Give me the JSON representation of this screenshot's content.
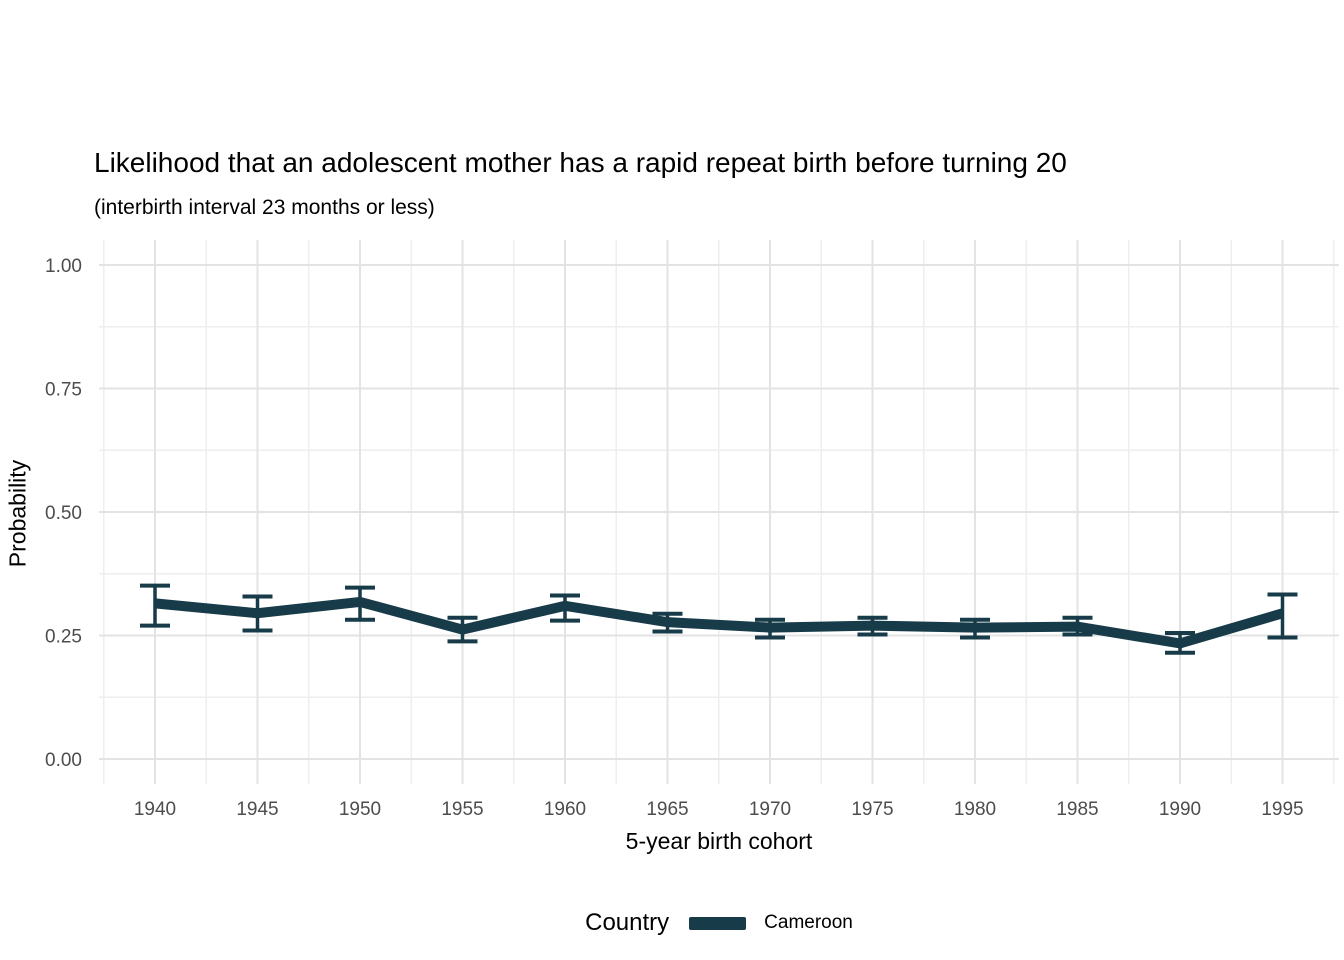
{
  "chart_data": {
    "type": "line",
    "title": "Likelihood that an adolescent mother has a rapid repeat birth before turning 20",
    "subtitle": "(interbirth interval 23 months or less)",
    "xlabel": "5-year birth cohort",
    "ylabel": "Probability",
    "x": [
      1940,
      1945,
      1950,
      1955,
      1960,
      1965,
      1970,
      1975,
      1980,
      1985,
      1990,
      1995
    ],
    "x_tick_labels": [
      "1940",
      "1945",
      "1950",
      "1955",
      "1960",
      "1965",
      "1970",
      "1975",
      "1980",
      "1985",
      "1990",
      "1995"
    ],
    "y_ticks": [
      0,
      0.25,
      0.5,
      0.75,
      1
    ],
    "y_tick_labels": [
      "0.00",
      "0.25",
      "0.50",
      "0.75",
      "1.00"
    ],
    "y_minor_ticks": [
      0.125,
      0.375,
      0.625,
      0.875
    ],
    "ylim": [
      0,
      1
    ],
    "grid": "major-and-minor",
    "series": [
      {
        "name": "Cameroon",
        "color": "#173b48",
        "values": [
          0.315,
          0.295,
          0.318,
          0.262,
          0.31,
          0.277,
          0.266,
          0.27,
          0.266,
          0.268,
          0.234,
          0.295
        ],
        "lower": [
          0.27,
          0.26,
          0.282,
          0.238,
          0.28,
          0.258,
          0.246,
          0.252,
          0.246,
          0.252,
          0.215,
          0.246
        ],
        "upper": [
          0.351,
          0.329,
          0.347,
          0.286,
          0.331,
          0.294,
          0.282,
          0.286,
          0.282,
          0.286,
          0.255,
          0.333
        ]
      }
    ],
    "legend": {
      "title": "Country",
      "position": "bottom"
    },
    "colors": {
      "background": "#ffffff",
      "grid_major": "#e3e3e3",
      "grid_minor": "#eeeeee",
      "tick_label": "#4d4d4d",
      "text": "#000000"
    }
  }
}
